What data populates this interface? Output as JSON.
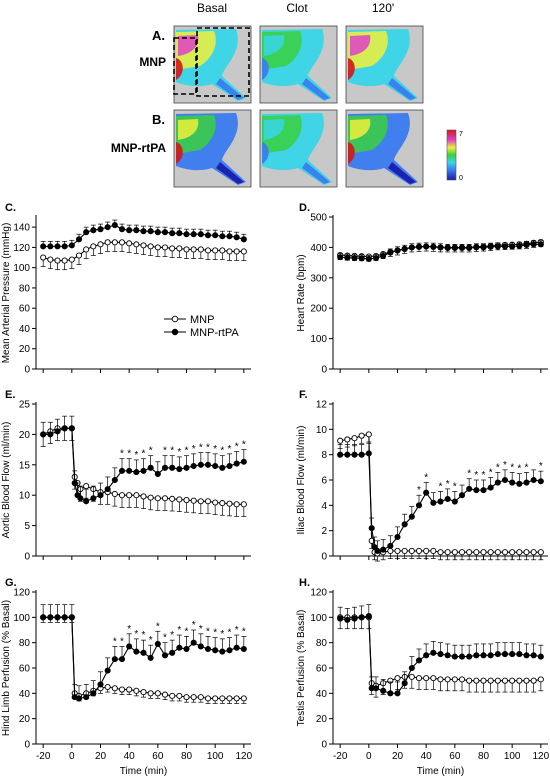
{
  "imaging": {
    "columns": [
      "Basal",
      "Clot",
      "120'"
    ],
    "rows": [
      {
        "panel": "A.",
        "label": "MNP"
      },
      {
        "panel": "B.",
        "label": "MNP-rtPA"
      }
    ],
    "scale_max": "7",
    "scale_min": "0"
  },
  "colors": {
    "mnp": "#ffffff",
    "rtpa": "#000000",
    "axis": "#000000",
    "tissue_bg": "#c8c8c8"
  },
  "chart_data": [
    {
      "panel": "C.",
      "type": "line",
      "xlabel": "",
      "ylabel": "Mean Arterial Pressure (mmHg)",
      "ylim": [
        0,
        150
      ],
      "yticks": [
        0,
        20,
        40,
        60,
        80,
        100,
        120,
        140
      ],
      "xlim": [
        -25,
        125
      ],
      "xticks": [],
      "legend": {
        "position": "middle-center",
        "entries": [
          "MNP",
          "MNP-rtPA"
        ]
      },
      "series": [
        {
          "name": "MNP",
          "marker": "open",
          "err": 9,
          "x": [
            -20,
            -15,
            -10,
            -5,
            0,
            5,
            10,
            15,
            20,
            25,
            30,
            35,
            40,
            45,
            50,
            55,
            60,
            65,
            70,
            75,
            80,
            85,
            90,
            95,
            100,
            105,
            110,
            115,
            120
          ],
          "values": [
            110,
            108,
            107,
            107,
            108,
            112,
            118,
            121,
            123,
            125,
            125,
            125,
            124,
            123,
            122,
            121,
            120,
            120,
            119,
            119,
            118,
            118,
            118,
            117,
            117,
            117,
            116,
            116,
            116
          ]
        },
        {
          "name": "MNP-rtPA",
          "marker": "filled",
          "err": 5,
          "x": [
            -20,
            -15,
            -10,
            -5,
            0,
            5,
            10,
            15,
            20,
            25,
            30,
            35,
            40,
            45,
            50,
            55,
            60,
            65,
            70,
            75,
            80,
            85,
            90,
            95,
            100,
            105,
            110,
            115,
            120
          ],
          "values": [
            121,
            121,
            121,
            121,
            122,
            128,
            135,
            137,
            138,
            140,
            142,
            138,
            137,
            137,
            136,
            136,
            135,
            135,
            134,
            134,
            133,
            133,
            133,
            132,
            132,
            131,
            131,
            130,
            128
          ]
        }
      ]
    },
    {
      "panel": "D.",
      "type": "line",
      "xlabel": "",
      "ylabel": "Heart Rate (bpm)",
      "ylim": [
        0,
        500
      ],
      "yticks": [
        0,
        100,
        200,
        300,
        400,
        500
      ],
      "xlim": [
        -25,
        125
      ],
      "xticks": [],
      "series": [
        {
          "name": "MNP",
          "marker": "open",
          "err": 15,
          "x": [
            -20,
            -15,
            -10,
            -5,
            0,
            5,
            10,
            15,
            20,
            25,
            30,
            35,
            40,
            45,
            50,
            55,
            60,
            65,
            70,
            75,
            80,
            85,
            90,
            95,
            100,
            105,
            110,
            115,
            120
          ],
          "values": [
            375,
            373,
            372,
            371,
            370,
            372,
            378,
            385,
            390,
            395,
            400,
            402,
            403,
            402,
            400,
            400,
            400,
            400,
            400,
            402,
            403,
            405,
            407,
            408,
            409,
            410,
            412,
            415,
            418
          ]
        },
        {
          "name": "MNP-rtPA",
          "marker": "filled",
          "err": 12,
          "x": [
            -20,
            -15,
            -10,
            -5,
            0,
            5,
            10,
            15,
            20,
            25,
            30,
            35,
            40,
            45,
            50,
            55,
            60,
            65,
            70,
            75,
            80,
            85,
            90,
            95,
            100,
            105,
            110,
            115,
            120
          ],
          "values": [
            368,
            366,
            365,
            364,
            362,
            365,
            372,
            383,
            390,
            395,
            400,
            402,
            403,
            402,
            400,
            398,
            398,
            398,
            398,
            400,
            400,
            402,
            403,
            403,
            403,
            405,
            408,
            410,
            410
          ]
        }
      ]
    },
    {
      "panel": "E.",
      "type": "line",
      "xlabel": "",
      "ylabel": "Aortic Blood Flow (ml/min)",
      "ylim": [
        0,
        25
      ],
      "yticks": [
        0,
        5,
        10,
        15,
        20,
        25
      ],
      "xlim": [
        -25,
        125
      ],
      "xticks": [],
      "significance_x": [
        35,
        40,
        45,
        50,
        55,
        65,
        70,
        75,
        80,
        85,
        90,
        95,
        100,
        105,
        110,
        115,
        120
      ],
      "series": [
        {
          "name": "MNP",
          "marker": "open",
          "err": 2,
          "x": [
            -20,
            -15,
            -10,
            -5,
            0,
            2,
            4,
            6,
            10,
            15,
            20,
            25,
            30,
            35,
            40,
            45,
            50,
            55,
            60,
            65,
            70,
            75,
            80,
            85,
            90,
            95,
            100,
            105,
            110,
            115,
            120
          ],
          "values": [
            20,
            20.5,
            21,
            21,
            21,
            13,
            12,
            11,
            11.5,
            11,
            10.5,
            10.5,
            10.2,
            10,
            10,
            10,
            9.8,
            9.6,
            9.5,
            9.5,
            9.4,
            9.3,
            9.2,
            9.1,
            9,
            9,
            8.8,
            8.7,
            8.6,
            8.5,
            8.5
          ]
        },
        {
          "name": "MNP-rtPA",
          "marker": "filled",
          "err": 2,
          "x": [
            -20,
            -15,
            -10,
            -5,
            0,
            2,
            4,
            6,
            10,
            15,
            20,
            25,
            30,
            35,
            40,
            45,
            50,
            55,
            60,
            65,
            70,
            75,
            80,
            85,
            90,
            95,
            100,
            105,
            110,
            115,
            120
          ],
          "values": [
            20,
            20,
            20.5,
            21,
            21,
            12,
            10,
            9.5,
            9,
            9.5,
            10,
            11,
            12.5,
            14,
            14,
            13.8,
            14,
            14.5,
            13.5,
            14.5,
            14.5,
            14.3,
            14.5,
            14.8,
            15,
            15,
            14.8,
            14.5,
            14.8,
            15.2,
            15.5
          ]
        }
      ]
    },
    {
      "panel": "F.",
      "type": "line",
      "xlabel": "",
      "ylabel": "Iliac Blood Flow (ml/min)",
      "ylim": [
        0,
        12
      ],
      "yticks": [
        0,
        2,
        4,
        6,
        8,
        10,
        12
      ],
      "xlim": [
        -25,
        125
      ],
      "xticks": [],
      "significance_x": [
        35,
        40,
        50,
        55,
        60,
        70,
        75,
        80,
        85,
        90,
        95,
        100,
        105,
        110,
        120
      ],
      "series": [
        {
          "name": "MNP",
          "marker": "open",
          "err": 0.6,
          "x": [
            -20,
            -15,
            -10,
            -5,
            0,
            2,
            4,
            6,
            10,
            15,
            20,
            25,
            30,
            35,
            40,
            45,
            50,
            55,
            60,
            65,
            70,
            75,
            80,
            85,
            90,
            95,
            100,
            105,
            110,
            115,
            120
          ],
          "values": [
            9.1,
            9.2,
            9.3,
            9.5,
            9.6,
            1.2,
            0.3,
            0.2,
            0.3,
            0.4,
            0.4,
            0.4,
            0.4,
            0.4,
            0.4,
            0.4,
            0.3,
            0.3,
            0.3,
            0.3,
            0.3,
            0.3,
            0.3,
            0.3,
            0.3,
            0.3,
            0.3,
            0.3,
            0.3,
            0.3,
            0.3
          ]
        },
        {
          "name": "MNP-rtPA",
          "marker": "filled",
          "err": 0.8,
          "x": [
            -20,
            -15,
            -10,
            -5,
            0,
            2,
            4,
            6,
            10,
            15,
            20,
            25,
            30,
            35,
            40,
            45,
            50,
            55,
            60,
            65,
            70,
            75,
            80,
            85,
            90,
            95,
            100,
            105,
            110,
            115,
            120
          ],
          "values": [
            8,
            8,
            8,
            8,
            8.1,
            2.2,
            0.7,
            0.4,
            0.5,
            0.8,
            1.5,
            2.5,
            3.1,
            4,
            5,
            4.2,
            4.3,
            4.5,
            4.3,
            4.8,
            5.3,
            5.2,
            5.2,
            5.4,
            5.8,
            6,
            5.8,
            5.7,
            5.8,
            6,
            5.9
          ]
        }
      ]
    },
    {
      "panel": "G.",
      "type": "line",
      "xlabel": "Time (min)",
      "ylabel": "Hind Limb Perfusion (% Basal)",
      "ylim": [
        0,
        120
      ],
      "yticks": [
        0,
        20,
        40,
        60,
        80,
        100,
        120
      ],
      "xlim": [
        -25,
        125
      ],
      "xticks": [
        -20,
        0,
        20,
        40,
        60,
        80,
        100,
        120
      ],
      "significance_x": [
        30,
        35,
        40,
        45,
        50,
        55,
        60,
        65,
        70,
        75,
        80,
        85,
        90,
        95,
        100,
        105,
        110,
        115,
        120
      ],
      "series": [
        {
          "name": "MNP",
          "marker": "open",
          "err": 4,
          "x": [
            -20,
            -15,
            -10,
            -5,
            0,
            2,
            5,
            10,
            15,
            20,
            25,
            30,
            35,
            40,
            45,
            50,
            55,
            60,
            65,
            70,
            75,
            80,
            85,
            90,
            95,
            100,
            105,
            110,
            115,
            120
          ],
          "values": [
            100,
            100,
            100,
            100,
            100,
            40,
            38,
            40,
            42,
            44,
            45,
            44,
            43,
            43,
            42,
            41,
            40,
            40,
            39,
            38,
            38,
            37,
            37,
            37,
            36,
            36,
            36,
            36,
            36,
            36
          ]
        },
        {
          "name": "MNP-rtPA",
          "marker": "filled",
          "err": 10,
          "x": [
            -20,
            -15,
            -10,
            -5,
            0,
            2,
            5,
            10,
            15,
            20,
            25,
            30,
            35,
            40,
            45,
            50,
            55,
            60,
            65,
            70,
            75,
            80,
            85,
            90,
            95,
            100,
            105,
            110,
            115,
            120
          ],
          "values": [
            100,
            100,
            100,
            100,
            100,
            37,
            36,
            37,
            40,
            47,
            58,
            67,
            67,
            77,
            73,
            72,
            68,
            79,
            70,
            72,
            76,
            75,
            80,
            77,
            75,
            74,
            73,
            74,
            76,
            75
          ]
        }
      ]
    },
    {
      "panel": "H.",
      "type": "line",
      "xlabel": "Time (min)",
      "ylabel": "Testis Perfusion (% Basal)",
      "ylim": [
        0,
        120
      ],
      "yticks": [
        0,
        20,
        40,
        60,
        80,
        100,
        120
      ],
      "xlim": [
        -25,
        125
      ],
      "xticks": [
        -20,
        0,
        20,
        40,
        60,
        80,
        100,
        120
      ],
      "series": [
        {
          "name": "MNP",
          "marker": "open",
          "err": 9,
          "x": [
            -20,
            -15,
            -10,
            -5,
            0,
            2,
            5,
            10,
            15,
            20,
            25,
            30,
            35,
            40,
            45,
            50,
            55,
            60,
            65,
            70,
            75,
            80,
            85,
            90,
            95,
            100,
            105,
            110,
            115,
            120
          ],
          "values": [
            100,
            100,
            100,
            100,
            100,
            48,
            46,
            48,
            50,
            52,
            53,
            53,
            52,
            52,
            52,
            51,
            51,
            51,
            51,
            50,
            50,
            50,
            50,
            50,
            50,
            50,
            50,
            50,
            50,
            51
          ]
        },
        {
          "name": "MNP-rtPA",
          "marker": "filled",
          "err": 9,
          "x": [
            -20,
            -15,
            -10,
            -5,
            0,
            2,
            5,
            10,
            15,
            20,
            25,
            30,
            35,
            40,
            45,
            50,
            55,
            60,
            65,
            70,
            75,
            80,
            85,
            90,
            95,
            100,
            105,
            110,
            115,
            120
          ],
          "values": [
            99,
            98,
            99,
            100,
            101,
            44,
            44,
            42,
            40,
            40,
            48,
            60,
            66,
            70,
            72,
            71,
            70,
            69,
            69,
            69,
            70,
            70,
            70,
            71,
            71,
            71,
            71,
            70,
            70,
            69
          ]
        }
      ]
    }
  ]
}
